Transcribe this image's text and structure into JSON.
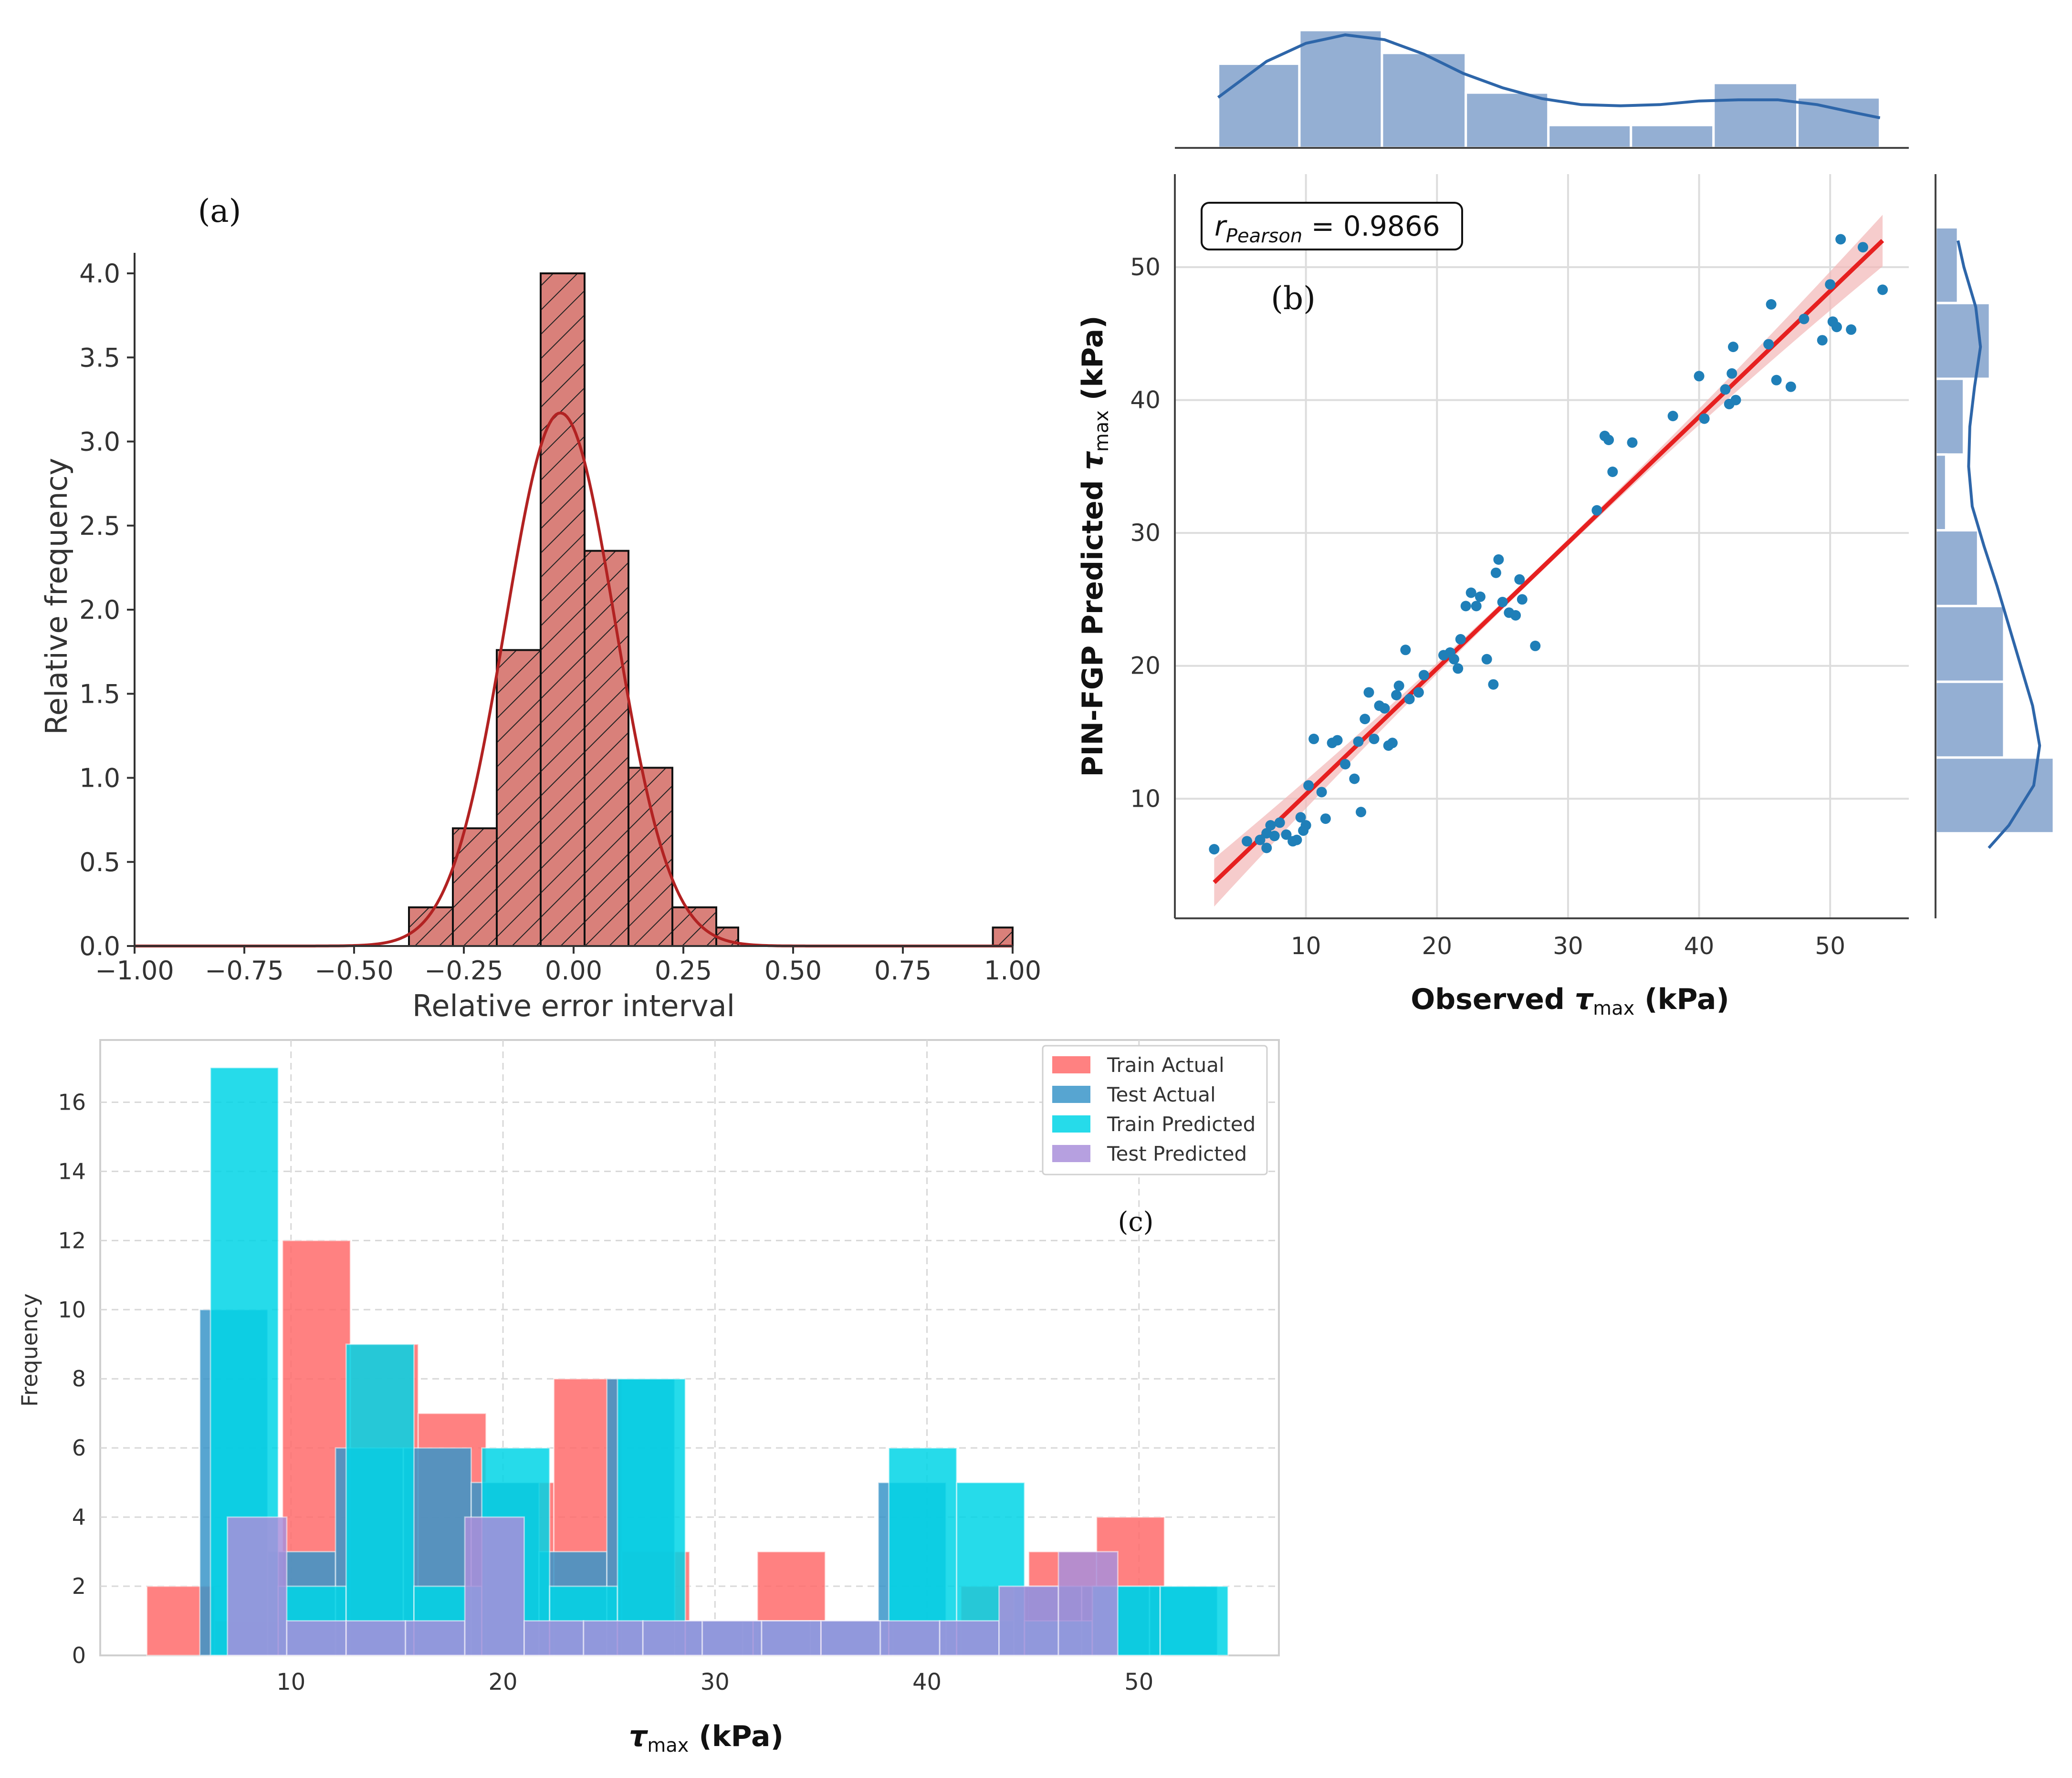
{
  "chart_data": [
    {
      "panel": "(a)",
      "type": "bar",
      "xlabel": "Relative error interval",
      "ylabel": "Relative frequency",
      "xlim": [
        -1.0,
        1.0
      ],
      "ylim": [
        0,
        4.15
      ],
      "xticks": [
        "−1.00",
        "−0.75",
        "−0.50",
        "−0.25",
        "0.00",
        "0.25",
        "0.50",
        "0.75",
        "1.00"
      ],
      "yticks": [
        "0.0",
        "0.5",
        "1.0",
        "1.5",
        "2.0",
        "2.5",
        "3.0",
        "3.5",
        "4.0"
      ],
      "bin_width": 0.1,
      "bins": [
        {
          "x0": -0.375,
          "x1": -0.275,
          "y": 0.23
        },
        {
          "x0": -0.275,
          "x1": -0.175,
          "y": 0.7
        },
        {
          "x0": -0.175,
          "x1": -0.075,
          "y": 1.76
        },
        {
          "x0": -0.075,
          "x1": 0.025,
          "y": 4.0
        },
        {
          "x0": 0.025,
          "x1": 0.125,
          "y": 2.35
        },
        {
          "x0": 0.125,
          "x1": 0.225,
          "y": 1.06
        },
        {
          "x0": 0.225,
          "x1": 0.325,
          "y": 0.23
        },
        {
          "x0": 0.325,
          "x1": 0.375,
          "y": 0.11
        },
        {
          "x0": 0.955,
          "x1": 1.0,
          "y": 0.11
        }
      ],
      "kde": {
        "mean": -0.03,
        "sigma": 0.125,
        "peak": 3.17
      },
      "colors": {
        "bar": "#d9807a",
        "curve": "#b22222"
      }
    },
    {
      "panel": "(b)",
      "type": "scatter",
      "xlabel_main": "Observed ",
      "xlabel_sub": "max",
      "xlabel_tail": " (kPa)",
      "ylabel_main": "PIN-FGP Predicted ",
      "ylabel_sub": "max",
      "ylabel_tail": " (kPa)",
      "annotation_main": "r",
      "annotation_sub": "Pearson",
      "annotation_tail": " = 0.9866",
      "xlim": [
        0,
        56
      ],
      "ylim": [
        1,
        57
      ],
      "xticks": [
        "10",
        "20",
        "30",
        "40",
        "50"
      ],
      "yticks": [
        "10",
        "20",
        "30",
        "40",
        "50"
      ],
      "fit_line": {
        "x": [
          3,
          54
        ],
        "y": [
          3.7,
          52
        ]
      },
      "points": [
        [
          3,
          6.2
        ],
        [
          5.5,
          6.8
        ],
        [
          6.5,
          6.9
        ],
        [
          7,
          6.3
        ],
        [
          7,
          7.4
        ],
        [
          7.3,
          8.0
        ],
        [
          7.6,
          7.2
        ],
        [
          8,
          8.2
        ],
        [
          8.5,
          7.3
        ],
        [
          9,
          6.8
        ],
        [
          9.3,
          6.9
        ],
        [
          9.6,
          8.6
        ],
        [
          9.8,
          7.6
        ],
        [
          10,
          8.0
        ],
        [
          10.2,
          11
        ],
        [
          10.6,
          14.5
        ],
        [
          11.2,
          10.5
        ],
        [
          11.5,
          8.5
        ],
        [
          12,
          14.2
        ],
        [
          12.4,
          14.4
        ],
        [
          13,
          12.6
        ],
        [
          13.7,
          11.5
        ],
        [
          14,
          14.3
        ],
        [
          14.2,
          9.0
        ],
        [
          14.5,
          16
        ],
        [
          14.8,
          18
        ],
        [
          15.2,
          14.5
        ],
        [
          15.6,
          17
        ],
        [
          16,
          16.8
        ],
        [
          16.3,
          14
        ],
        [
          16.6,
          14.2
        ],
        [
          16.9,
          17.8
        ],
        [
          17.1,
          18.5
        ],
        [
          17.6,
          21.2
        ],
        [
          17.9,
          17.5
        ],
        [
          18.6,
          18
        ],
        [
          19,
          19.3
        ],
        [
          20.5,
          20.8
        ],
        [
          21,
          21
        ],
        [
          21.3,
          20.5
        ],
        [
          21.6,
          19.8
        ],
        [
          21.8,
          22
        ],
        [
          22.2,
          24.5
        ],
        [
          22.6,
          25.5
        ],
        [
          23,
          24.5
        ],
        [
          23.3,
          25.2
        ],
        [
          23.8,
          20.5
        ],
        [
          24.3,
          18.6
        ],
        [
          24.5,
          27
        ],
        [
          24.7,
          28
        ],
        [
          25,
          24.8
        ],
        [
          25.5,
          24
        ],
        [
          26,
          23.8
        ],
        [
          26.3,
          26.5
        ],
        [
          26.5,
          25
        ],
        [
          27.5,
          21.5
        ],
        [
          32.2,
          31.7
        ],
        [
          32.8,
          37.3
        ],
        [
          33.1,
          37
        ],
        [
          33.4,
          34.6
        ],
        [
          34.9,
          36.8
        ],
        [
          38,
          38.8
        ],
        [
          40,
          41.8
        ],
        [
          40.4,
          38.6
        ],
        [
          42,
          40.8
        ],
        [
          42.3,
          39.7
        ],
        [
          42.5,
          42
        ],
        [
          42.6,
          44
        ],
        [
          42.8,
          40
        ],
        [
          45.3,
          44.2
        ],
        [
          45.5,
          47.2
        ],
        [
          45.9,
          41.5
        ],
        [
          47,
          41
        ],
        [
          48,
          46.1
        ],
        [
          49.4,
          44.5
        ],
        [
          50,
          48.7
        ],
        [
          50.2,
          45.9
        ],
        [
          50.5,
          45.5
        ],
        [
          50.8,
          52.1
        ],
        [
          51.6,
          45.3
        ],
        [
          52.5,
          51.5
        ],
        [
          54,
          48.3
        ]
      ],
      "top_marginal": {
        "bins": [
          [
            3.3,
            9.5,
            0.7
          ],
          [
            9.5,
            15.8,
            0.98
          ],
          [
            15.8,
            22.2,
            0.79
          ],
          [
            22.2,
            28.5,
            0.46
          ],
          [
            28.5,
            34.8,
            0.19
          ],
          [
            34.8,
            41.1,
            0.19
          ],
          [
            41.1,
            47.5,
            0.54
          ],
          [
            47.5,
            53.8,
            0.42
          ]
        ],
        "kde": [
          [
            3.3,
            0.42
          ],
          [
            7,
            0.72
          ],
          [
            10,
            0.87
          ],
          [
            13,
            0.94
          ],
          [
            16,
            0.9
          ],
          [
            19,
            0.78
          ],
          [
            22,
            0.62
          ],
          [
            25,
            0.5
          ],
          [
            28,
            0.41
          ],
          [
            31,
            0.36
          ],
          [
            34,
            0.35
          ],
          [
            37,
            0.36
          ],
          [
            40,
            0.39
          ],
          [
            43,
            0.4
          ],
          [
            46,
            0.4
          ],
          [
            49,
            0.36
          ],
          [
            52,
            0.29
          ],
          [
            53.8,
            0.25
          ]
        ]
      },
      "right_marginal": {
        "bins": [
          [
            47.3,
            53.0,
            0.19
          ],
          [
            41.6,
            47.3,
            0.46
          ],
          [
            35.9,
            41.6,
            0.24
          ],
          [
            30.2,
            35.9,
            0.09
          ],
          [
            24.5,
            30.2,
            0.36
          ],
          [
            18.8,
            24.5,
            0.58
          ],
          [
            13.1,
            18.8,
            0.58
          ],
          [
            7.4,
            13.1,
            1.0
          ]
        ],
        "kde": [
          [
            52,
            0.19
          ],
          [
            50,
            0.24
          ],
          [
            47,
            0.34
          ],
          [
            44,
            0.38
          ],
          [
            41,
            0.33
          ],
          [
            38,
            0.29
          ],
          [
            35,
            0.28
          ],
          [
            32,
            0.31
          ],
          [
            29,
            0.41
          ],
          [
            26,
            0.52
          ],
          [
            23,
            0.62
          ],
          [
            20,
            0.72
          ],
          [
            17,
            0.82
          ],
          [
            14,
            0.88
          ],
          [
            11,
            0.83
          ],
          [
            8,
            0.62
          ],
          [
            6.3,
            0.45
          ]
        ]
      },
      "colors": {
        "point": "#1f7fb8",
        "line": "#e62020",
        "band": "#f2b6b6",
        "marginal": "#94afd3",
        "marginal_curve": "#2e66a9"
      }
    },
    {
      "panel": "(c)",
      "type": "bar",
      "xlabel_main": "",
      "xlabel_sub": "max",
      "xlabel_tail": " (kPa)",
      "ylabel": "Frequency",
      "xlim": [
        1,
        56.6
      ],
      "ylim": [
        0,
        17.8
      ],
      "xticks": [
        "10",
        "20",
        "30",
        "40",
        "50"
      ],
      "yticks": [
        "0",
        "2",
        "4",
        "6",
        "8",
        "10",
        "12",
        "14",
        "16"
      ],
      "series": [
        {
          "name": "Train Actual",
          "color": "#ff6b6b",
          "opacity": 0.85,
          "bins": [
            [
              3.2,
              6.4,
              2
            ],
            [
              6.4,
              9.6,
              1
            ],
            [
              9.6,
              12.8,
              12
            ],
            [
              12.8,
              16,
              9
            ],
            [
              16,
              19.2,
              7
            ],
            [
              19.2,
              22.4,
              5
            ],
            [
              22.4,
              25.6,
              8
            ],
            [
              25.6,
              28.8,
              3
            ],
            [
              28.8,
              32,
              1
            ],
            [
              32,
              35.2,
              3
            ],
            [
              35.2,
              38.4,
              1
            ],
            [
              38.4,
              41.6,
              1
            ],
            [
              41.6,
              44.8,
              2
            ],
            [
              44.8,
              48,
              3
            ],
            [
              48,
              51.2,
              4
            ]
          ]
        },
        {
          "name": "Test Actual",
          "color": "#3a95c9",
          "opacity": 0.85,
          "bins": [
            [
              5.7,
              8.9,
              10
            ],
            [
              8.9,
              12.1,
              3
            ],
            [
              12.1,
              15.3,
              6
            ],
            [
              15.3,
              18.5,
              6
            ],
            [
              18.5,
              21.7,
              5
            ],
            [
              21.7,
              24.9,
              3
            ],
            [
              24.9,
              28.1,
              8
            ],
            [
              28.1,
              31.3,
              1
            ],
            [
              31.3,
              34.5,
              1
            ],
            [
              34.5,
              37.7,
              1
            ],
            [
              37.7,
              40.9,
              5
            ],
            [
              40.9,
              44.1,
              1
            ],
            [
              44.1,
              47.3,
              2
            ],
            [
              47.3,
              50.5,
              2
            ],
            [
              50.5,
              53.7,
              2
            ]
          ]
        },
        {
          "name": "Train Predicted",
          "color": "#00d5e6",
          "opacity": 0.85,
          "bins": [
            [
              6.2,
              9.4,
              17
            ],
            [
              9.4,
              12.6,
              2
            ],
            [
              12.6,
              15.8,
              9
            ],
            [
              15.8,
              19,
              2
            ],
            [
              19,
              22.2,
              6
            ],
            [
              22.2,
              25.4,
              2
            ],
            [
              25.4,
              28.6,
              8
            ],
            [
              28.6,
              31.8,
              1
            ],
            [
              31.8,
              35,
              1
            ],
            [
              35,
              38.2,
              1
            ],
            [
              38.2,
              41.4,
              6
            ],
            [
              41.4,
              44.6,
              5
            ],
            [
              44.6,
              47.8,
              1
            ],
            [
              47.8,
              51,
              2
            ],
            [
              51,
              54.2,
              2
            ]
          ]
        },
        {
          "name": "Test Predicted",
          "color": "#a98fdb",
          "opacity": 0.85,
          "bins": [
            [
              7,
              9.8,
              4
            ],
            [
              9.8,
              12.6,
              1
            ],
            [
              12.6,
              15.4,
              1
            ],
            [
              15.4,
              18.2,
              1
            ],
            [
              18.2,
              21,
              4
            ],
            [
              21,
              23.8,
              1
            ],
            [
              23.8,
              26.6,
              1
            ],
            [
              26.6,
              29.4,
              1
            ],
            [
              29.4,
              32.2,
              1
            ],
            [
              32.2,
              35,
              1
            ],
            [
              35,
              37.8,
              1
            ],
            [
              37.8,
              40.6,
              1
            ],
            [
              40.6,
              43.4,
              1
            ],
            [
              43.4,
              46.2,
              2
            ],
            [
              46.2,
              49,
              3
            ]
          ]
        }
      ],
      "legend_position": "top-right"
    }
  ],
  "labels": {
    "a": "(a)",
    "b": "(b)",
    "c": "(c)"
  },
  "symbols": {
    "tau": "τ"
  }
}
